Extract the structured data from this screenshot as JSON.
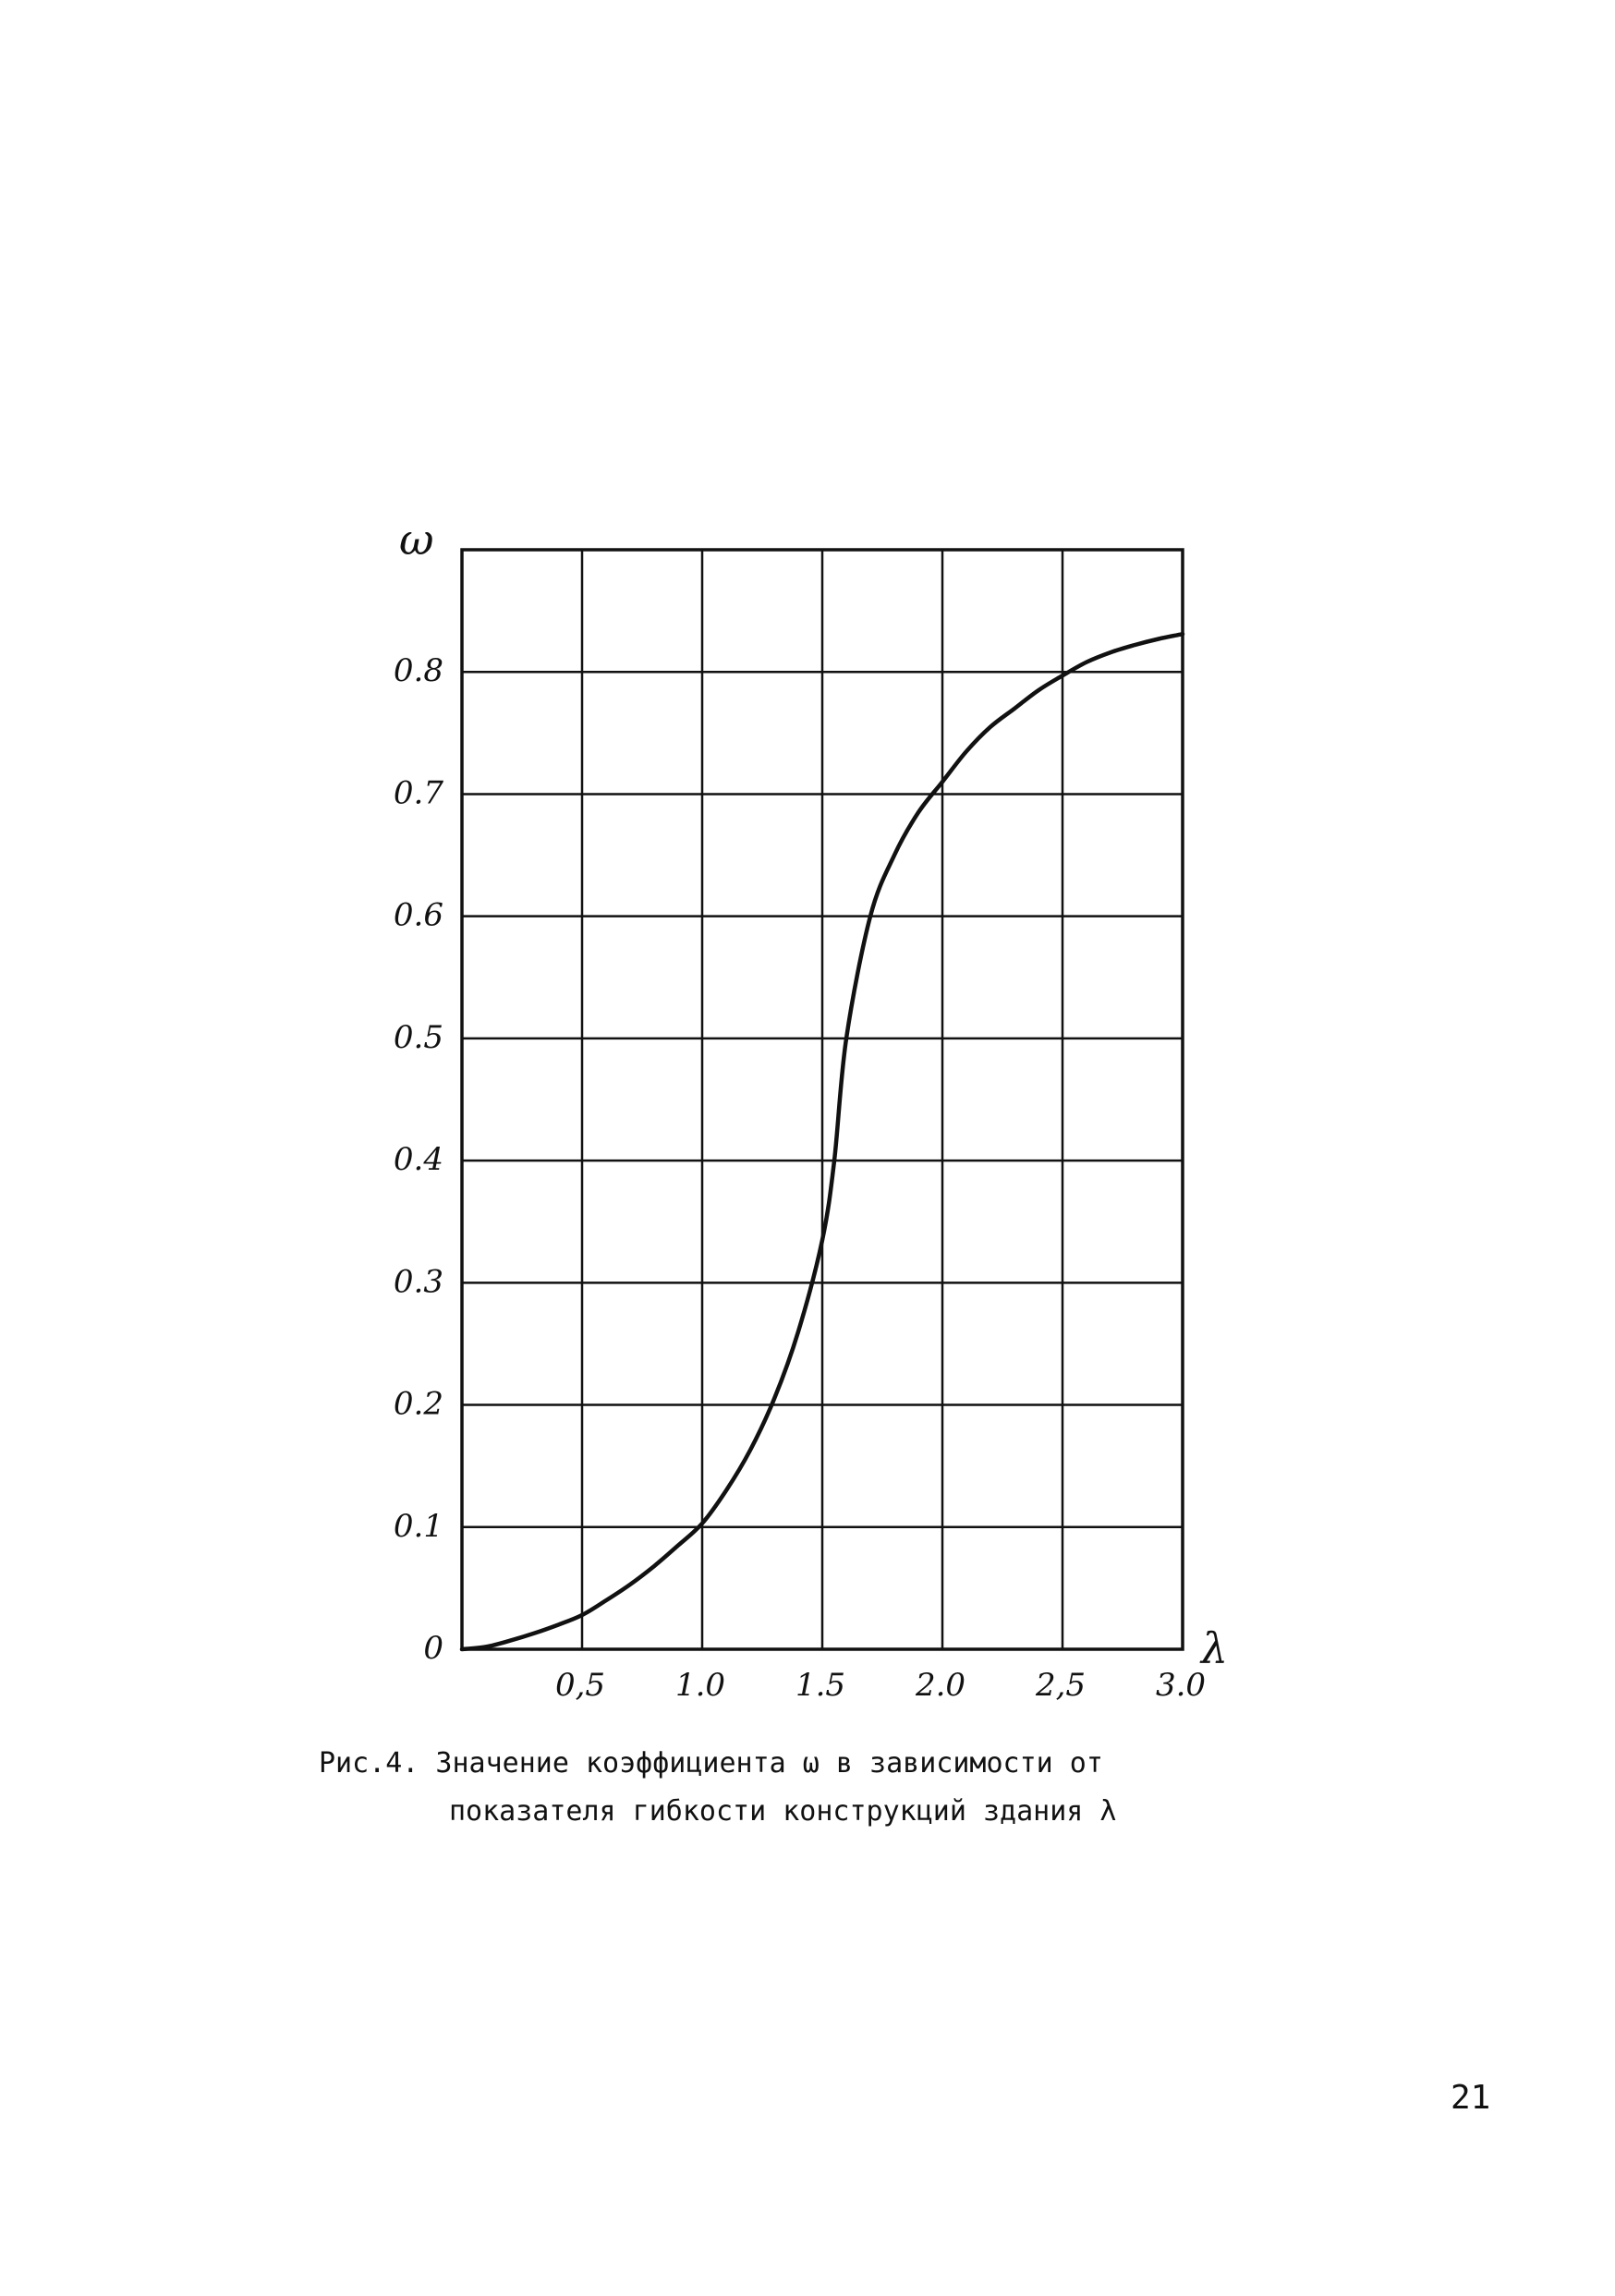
{
  "chart_data": {
    "type": "line",
    "xlabel": "λ",
    "ylabel": "ω",
    "xlim": [
      0,
      3.0
    ],
    "ylim": [
      0,
      0.9
    ],
    "grid": true,
    "x_ticks": [
      {
        "value": 0.5,
        "label": "0,5"
      },
      {
        "value": 1.0,
        "label": "1.0"
      },
      {
        "value": 1.5,
        "label": "1.5"
      },
      {
        "value": 2.0,
        "label": "2.0"
      },
      {
        "value": 2.5,
        "label": "2,5"
      },
      {
        "value": 3.0,
        "label": "3.0"
      }
    ],
    "y_ticks": [
      {
        "value": 0,
        "label": "0"
      },
      {
        "value": 0.1,
        "label": "0.1"
      },
      {
        "value": 0.2,
        "label": "0.2"
      },
      {
        "value": 0.3,
        "label": "0.3"
      },
      {
        "value": 0.4,
        "label": "0.4"
      },
      {
        "value": 0.5,
        "label": "0.5"
      },
      {
        "value": 0.6,
        "label": "0.6"
      },
      {
        "value": 0.7,
        "label": "0.7"
      },
      {
        "value": 0.8,
        "label": "0.8"
      }
    ],
    "series": [
      {
        "x": [
          0.0,
          0.1,
          0.2,
          0.3,
          0.4,
          0.5,
          0.6,
          0.7,
          0.8,
          0.9,
          1.0,
          1.1,
          1.2,
          1.3,
          1.4,
          1.5,
          1.55,
          1.6,
          1.7,
          1.8,
          1.9,
          2.0,
          2.1,
          2.2,
          2.3,
          2.4,
          2.5,
          2.6,
          2.7,
          2.8,
          2.9,
          3.0
        ],
        "y": [
          0.0,
          0.002,
          0.007,
          0.013,
          0.02,
          0.028,
          0.04,
          0.053,
          0.068,
          0.085,
          0.103,
          0.13,
          0.163,
          0.205,
          0.26,
          0.335,
          0.4,
          0.5,
          0.6,
          0.65,
          0.685,
          0.71,
          0.735,
          0.755,
          0.77,
          0.785,
          0.797,
          0.808,
          0.816,
          0.822,
          0.827,
          0.831
        ]
      }
    ]
  },
  "caption": {
    "line1": "Рис.4. Значение коэффициента ω   в зависимости от",
    "line2": "показателя гибкости конструкций здания  λ"
  },
  "page_number": "21",
  "colors": {
    "ink": "#111111",
    "paper": "#ffffff"
  }
}
